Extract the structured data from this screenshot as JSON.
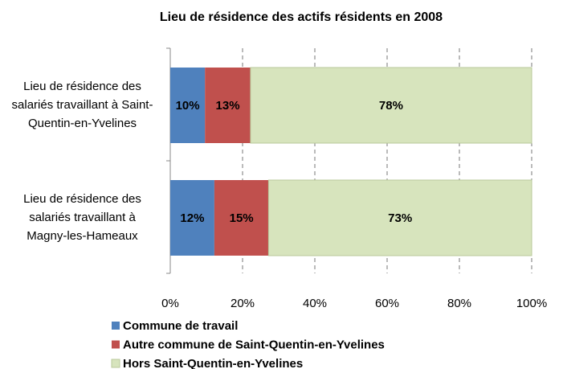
{
  "chart_data": {
    "type": "stacked_barh",
    "title": "Lieu de résidence des actifs résidents en 2008",
    "categories": [
      "Lieu de résidence des salariés travaillant à Saint-Quentin-en-Yvelines",
      "Lieu de résidence des salariés travaillant à Magny-les-Hameaux"
    ],
    "series": [
      {
        "name": "Commune de travail",
        "color": "#4f81bd",
        "values": [
          9.6,
          12.2
        ],
        "value_labels": [
          "10%",
          "12%"
        ]
      },
      {
        "name": "Autre commune de Saint-Quentin-en-Yvelines",
        "color": "#c0504d",
        "values": [
          12.6,
          15.0
        ],
        "value_labels": [
          "13%",
          "15%"
        ]
      },
      {
        "name": "Hors Saint-Quentin-en-Yvelines",
        "color": "#d7e4bd",
        "values": [
          77.8,
          72.8
        ],
        "value_labels": [
          "78%",
          "73%"
        ]
      }
    ],
    "xlim": [
      0,
      100
    ],
    "xticks": [
      {
        "value": 0,
        "label": "0%"
      },
      {
        "value": 20,
        "label": "20%"
      },
      {
        "value": 40,
        "label": "40%"
      },
      {
        "value": 60,
        "label": "60%"
      },
      {
        "value": 80,
        "label": "80%"
      },
      {
        "value": 100,
        "label": "100%"
      }
    ],
    "grid": true,
    "legend": "bottom"
  }
}
